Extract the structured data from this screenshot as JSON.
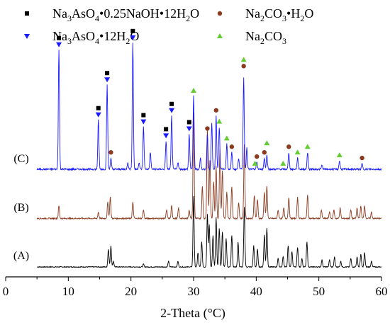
{
  "chart_data": {
    "type": "line",
    "xlabel": "2-Theta (°C)",
    "xlim": [
      0,
      60
    ],
    "xticks": [
      0,
      10,
      20,
      30,
      40,
      50,
      60
    ],
    "y_axis_visible": false,
    "legend": {
      "placement": "top",
      "entries": [
        {
          "key": "na3aso4_naoh",
          "base": "Na",
          "sub1": "3",
          "mid": "AsO",
          "sub2": "4",
          "rest": "•0.25NaOH•12H",
          "sub3": "2",
          "end": "O",
          "marker": "square",
          "color": "#000000"
        },
        {
          "key": "na3aso4_12h2o",
          "base": "Na",
          "sub1": "3",
          "mid": "AsO",
          "sub2": "4",
          "rest": "•12H",
          "sub3": "2",
          "end": "O",
          "marker": "triangle-down",
          "color": "#1a1aff"
        },
        {
          "key": "na2co3_h2o",
          "base": "Na",
          "sub1": "2",
          "mid": "CO",
          "sub2": "3",
          "rest": "•H",
          "sub3": "2",
          "end": "O",
          "marker": "circle",
          "color": "#8b3a1f"
        },
        {
          "key": "na2co3",
          "base": "Na",
          "sub1": "2",
          "mid": "CO",
          "sub2": "3",
          "rest": "",
          "sub3": "",
          "end": "",
          "marker": "triangle-up",
          "color": "#66cc33"
        }
      ]
    },
    "series": [
      {
        "label": "(A)",
        "color": "#000000",
        "baseline": 0,
        "peaks": [
          [
            16.4,
            0.25
          ],
          [
            16.8,
            0.3
          ],
          [
            17.2,
            0.08
          ],
          [
            22,
            0.04
          ],
          [
            26,
            0.08
          ],
          [
            27.5,
            0.08
          ],
          [
            30,
            1.0
          ],
          [
            30.7,
            0.2
          ],
          [
            31.3,
            0.35
          ],
          [
            32.2,
            0.75
          ],
          [
            32.5,
            0.6
          ],
          [
            33.1,
            0.45
          ],
          [
            33.6,
            0.7
          ],
          [
            34.1,
            0.55
          ],
          [
            34.6,
            0.5
          ],
          [
            35.2,
            0.4
          ],
          [
            36.1,
            0.45
          ],
          [
            37.1,
            0.35
          ],
          [
            38.1,
            0.85
          ],
          [
            39.6,
            0.3
          ],
          [
            40.2,
            0.25
          ],
          [
            41.3,
            0.45
          ],
          [
            41.7,
            0.55
          ],
          [
            43.5,
            0.12
          ],
          [
            44.3,
            0.15
          ],
          [
            45.1,
            0.3
          ],
          [
            45.7,
            0.22
          ],
          [
            46.6,
            0.28
          ],
          [
            47.3,
            0.12
          ],
          [
            48.1,
            0.35
          ],
          [
            50.5,
            0.1
          ],
          [
            51.7,
            0.1
          ],
          [
            52.5,
            0.14
          ],
          [
            53.5,
            0.08
          ],
          [
            55.1,
            0.12
          ],
          [
            56.1,
            0.14
          ],
          [
            56.7,
            0.18
          ],
          [
            57.3,
            0.2
          ],
          [
            58.4,
            0.08
          ]
        ]
      },
      {
        "label": "(B)",
        "color": "#8b3a1f",
        "baseline": 0,
        "peaks": [
          [
            8.5,
            0.12
          ],
          [
            14.8,
            0.06
          ],
          [
            16.3,
            0.15
          ],
          [
            16.7,
            0.2
          ],
          [
            20.3,
            0.15
          ],
          [
            22,
            0.08
          ],
          [
            25.7,
            0.08
          ],
          [
            26.5,
            0.12
          ],
          [
            27.6,
            0.1
          ],
          [
            29.3,
            0.08
          ],
          [
            30,
            1.0
          ],
          [
            31.4,
            0.3
          ],
          [
            32.2,
            0.85
          ],
          [
            32.6,
            0.55
          ],
          [
            33.2,
            0.35
          ],
          [
            33.6,
            0.5
          ],
          [
            34.2,
            0.65
          ],
          [
            34.6,
            0.45
          ],
          [
            35.3,
            0.25
          ],
          [
            36.1,
            0.3
          ],
          [
            37.2,
            0.15
          ],
          [
            38.1,
            0.7
          ],
          [
            39.7,
            0.22
          ],
          [
            40.2,
            0.18
          ],
          [
            41.3,
            0.25
          ],
          [
            41.7,
            0.3
          ],
          [
            43.5,
            0.08
          ],
          [
            44.4,
            0.1
          ],
          [
            45.2,
            0.2
          ],
          [
            46.6,
            0.2
          ],
          [
            48.2,
            0.22
          ],
          [
            50.4,
            0.08
          ],
          [
            51.7,
            0.06
          ],
          [
            52.4,
            0.08
          ],
          [
            53.4,
            0.1
          ],
          [
            55.1,
            0.08
          ],
          [
            56.1,
            0.1
          ],
          [
            56.7,
            0.12
          ],
          [
            57.3,
            0.12
          ],
          [
            58.4,
            0.06
          ]
        ]
      },
      {
        "label": "(C)",
        "color": "#1a1aff",
        "baseline": 0,
        "peaks": [
          [
            8.5,
            0.85
          ],
          [
            14.8,
            0.35
          ],
          [
            16.2,
            0.6
          ],
          [
            16.8,
            0.08
          ],
          [
            19.5,
            0.05
          ],
          [
            20.3,
            0.9
          ],
          [
            21.3,
            0.05
          ],
          [
            22,
            0.3
          ],
          [
            23.1,
            0.12
          ],
          [
            25.6,
            0.2
          ],
          [
            26.5,
            0.38
          ],
          [
            27.5,
            0.05
          ],
          [
            29.3,
            0.25
          ],
          [
            30,
            0.52
          ],
          [
            31.1,
            0.08
          ],
          [
            32.2,
            0.25
          ],
          [
            32.9,
            0.33
          ],
          [
            33.6,
            0.38
          ],
          [
            34.1,
            0.3
          ],
          [
            35.3,
            0.18
          ],
          [
            36.1,
            0.12
          ],
          [
            37.2,
            0.08
          ],
          [
            38,
            0.65
          ],
          [
            38.5,
            0.15
          ],
          [
            40.1,
            0.05
          ],
          [
            41.3,
            0.08
          ],
          [
            41.7,
            0.1
          ],
          [
            45.2,
            0.12
          ],
          [
            46.6,
            0.08
          ],
          [
            48.2,
            0.12
          ],
          [
            50.5,
            0.03
          ],
          [
            53.3,
            0.06
          ],
          [
            56.9,
            0.04
          ]
        ]
      }
    ],
    "phase_markers": {
      "na3aso4_naoh": [
        8.5,
        14.8,
        16.2,
        20.3,
        22,
        25.6,
        26.5,
        29.3
      ],
      "na3aso4_12h2o": [
        8.5,
        14.8,
        16.2,
        20.3,
        22,
        25.6,
        26.5,
        29.3
      ],
      "na2co3_h2o": [
        16.8,
        32.2,
        33.6,
        36.1,
        38,
        40.1,
        41.3,
        45.2,
        56.9
      ],
      "na2co3": [
        30,
        34.1,
        35.3,
        38,
        39.8,
        41.7,
        44.3,
        46.6,
        48.2,
        53.3
      ]
    }
  }
}
